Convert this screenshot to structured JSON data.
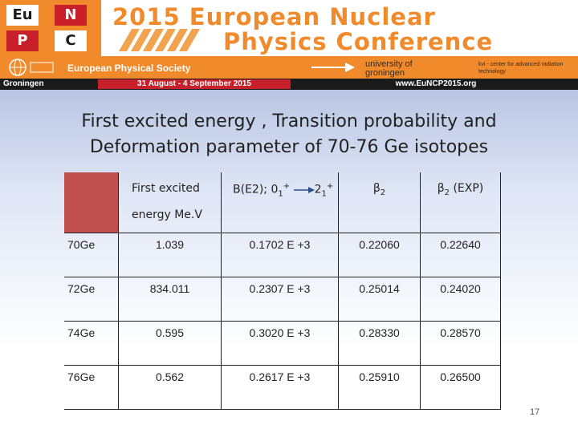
{
  "banner": {
    "logo_letters": [
      "Eu",
      "N",
      "P",
      "C"
    ],
    "conference_line1": "2015 European Nuclear",
    "conference_line2": "Physics Conference",
    "society": "European Physical Society",
    "university": "university of groningen",
    "kvi": "kvi - center for advanced radiation technology",
    "city": "Groningen",
    "dates": "31 August - 4 September 2015",
    "website": "www.EuNCP2015.org"
  },
  "slide": {
    "title_line1": "First excited energy , Transition probability and",
    "title_line2": "Deformation parameter of 70-76 Ge isotopes",
    "page_number": "17"
  },
  "table": {
    "headers": {
      "energy_line1": "First excited",
      "energy_line2": "energy Me.V",
      "be2_prefix": "B(E2); 0",
      "be2_sub1": "1",
      "be2_sup1": "+",
      "be2_mid": "2",
      "be2_sub2": "1",
      "be2_sup2": "+",
      "beta2": "β",
      "beta2_sub": "2",
      "beta2exp": "β",
      "beta2exp_sub": "2",
      "beta2exp_suffix": " (EXP)"
    },
    "rows": [
      {
        "isotope": "70Ge",
        "energy": "1.039",
        "be2": "0.1702 E +3",
        "beta2": "0.22060",
        "beta2_exp": "0.22640"
      },
      {
        "isotope": "72Ge",
        "energy": "834.011",
        "be2": "0.2307 E +3",
        "beta2": "0.25014",
        "beta2_exp": "0.24020"
      },
      {
        "isotope": "74Ge",
        "energy": "0.595",
        "be2": "0.3020 E +3",
        "beta2": "0.28330",
        "beta2_exp": "0.28570"
      },
      {
        "isotope": "76Ge",
        "energy": "0.562",
        "be2": "0.2617 E +3",
        "beta2": "0.25910",
        "beta2_exp": "0.26500"
      }
    ]
  },
  "colors": {
    "accent": "#f08a2a",
    "header_cell": "#c0504d",
    "dates_bar": "#c8202a"
  }
}
